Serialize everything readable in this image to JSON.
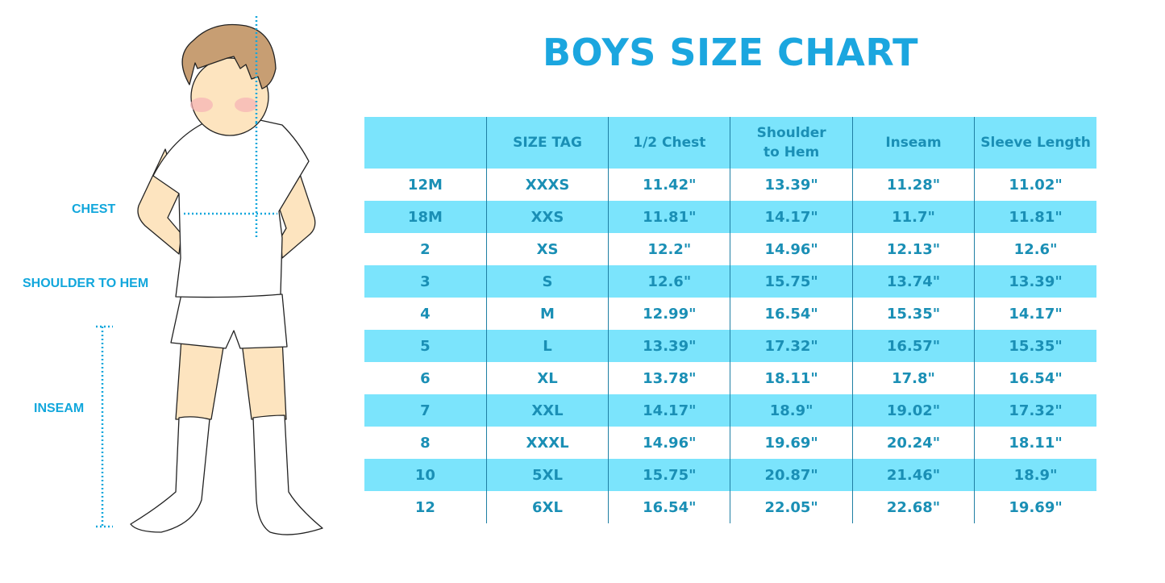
{
  "title": "BOYS SIZE CHART",
  "illustration": {
    "labels": {
      "chest": "CHEST",
      "shoulder_to_hem": "SHOULDER TO HEM",
      "inseam": "INSEAM"
    },
    "accent_color": "#12a7dc"
  },
  "table": {
    "headers": [
      "",
      "SIZE TAG",
      "1/2 Chest",
      "Shoulder to Hem",
      "Inseam",
      "Sleeve Length"
    ],
    "rows": [
      [
        "12M",
        "XXXS",
        "11.42\"",
        "13.39\"",
        "11.28\"",
        "11.02\""
      ],
      [
        "18M",
        "XXS",
        "11.81\"",
        "14.17\"",
        "11.7\"",
        "11.81\""
      ],
      [
        "2",
        "XS",
        "12.2\"",
        "14.96\"",
        "12.13\"",
        "12.6\""
      ],
      [
        "3",
        "S",
        "12.6\"",
        "15.75\"",
        "13.74\"",
        "13.39\""
      ],
      [
        "4",
        "M",
        "12.99\"",
        "16.54\"",
        "15.35\"",
        "14.17\""
      ],
      [
        "5",
        "L",
        "13.39\"",
        "17.32\"",
        "16.57\"",
        "15.35\""
      ],
      [
        "6",
        "XL",
        "13.78\"",
        "18.11\"",
        "17.8\"",
        "16.54\""
      ],
      [
        "7",
        "XXL",
        "14.17\"",
        "18.9\"",
        "19.02\"",
        "17.32\""
      ],
      [
        "8",
        "XXXL",
        "14.96\"",
        "19.69\"",
        "20.24\"",
        "18.11\""
      ],
      [
        "10",
        "5XL",
        "15.75\"",
        "20.87\"",
        "21.46\"",
        "18.9\""
      ],
      [
        "12",
        "6XL",
        "16.54\"",
        "22.05\"",
        "22.68\"",
        "19.69\""
      ]
    ]
  },
  "colors": {
    "title": "#1ba6df",
    "header_bg": "#7be4fc",
    "text": "#1a8fb5"
  }
}
